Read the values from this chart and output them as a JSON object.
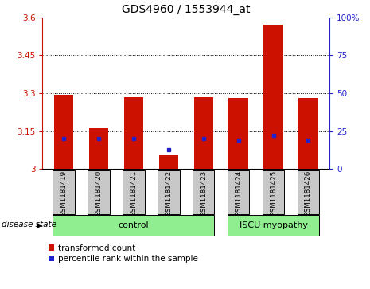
{
  "title": "GDS4960 / 1553944_at",
  "samples": [
    "GSM1181419",
    "GSM1181420",
    "GSM1181421",
    "GSM1181422",
    "GSM1181423",
    "GSM1181424",
    "GSM1181425",
    "GSM1181426"
  ],
  "red_values": [
    3.295,
    3.163,
    3.285,
    3.055,
    3.283,
    3.282,
    3.572,
    3.28
  ],
  "blue_pct": [
    20,
    20,
    20,
    13,
    20,
    19,
    22,
    19
  ],
  "ylim_left": [
    3.0,
    3.6
  ],
  "ylim_right": [
    0,
    100
  ],
  "yticks_left": [
    3.0,
    3.15,
    3.3,
    3.45,
    3.6
  ],
  "yticks_right": [
    0,
    25,
    50,
    75,
    100
  ],
  "ytick_labels_left": [
    "3",
    "3.15",
    "3.3",
    "3.45",
    "3.6"
  ],
  "ytick_labels_right": [
    "0",
    "25",
    "50",
    "75",
    "100%"
  ],
  "n_control": 5,
  "n_iscu": 3,
  "light_green": "#90EE90",
  "bar_color": "#CC1100",
  "dot_color": "#2222CC",
  "bar_width": 0.55,
  "bg_xticklabel": "#C8C8C8",
  "legend_red_label": "transformed count",
  "legend_blue_label": "percentile rank within the sample",
  "title_fontsize": 10,
  "tick_fontsize": 7.5,
  "sample_fontsize": 6.2,
  "group_fontsize": 8
}
